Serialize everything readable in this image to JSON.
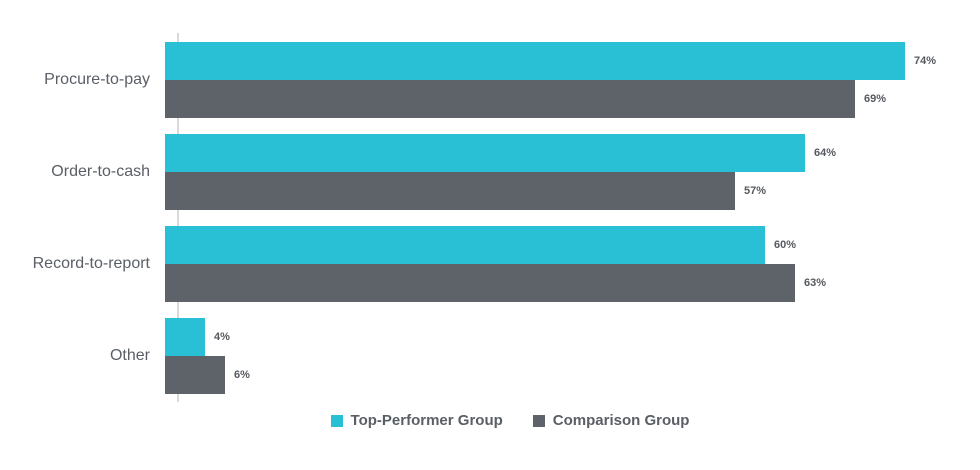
{
  "chart_data": {
    "type": "bar",
    "orientation": "horizontal",
    "title": "",
    "xlabel": "",
    "ylabel": "",
    "xlim": [
      0,
      80
    ],
    "grid": false,
    "legend_position": "bottom",
    "value_suffix": "%",
    "categories": [
      "Procure-to-pay",
      "Order-to-cash",
      "Record-to-report",
      "Other"
    ],
    "series": [
      {
        "name": "Top-Performer Group",
        "color": "#29bfd4",
        "values": [
          74,
          64,
          60,
          4
        ]
      },
      {
        "name": "Comparison Group",
        "color": "#5e6269",
        "values": [
          69,
          57,
          63,
          6
        ]
      }
    ]
  },
  "colors": {
    "background": "#ffffff",
    "axis_line": "#d9d9d9",
    "category_text": "#5a5f66",
    "value_text": "#55595f",
    "legend_text": "#5a5f66"
  }
}
